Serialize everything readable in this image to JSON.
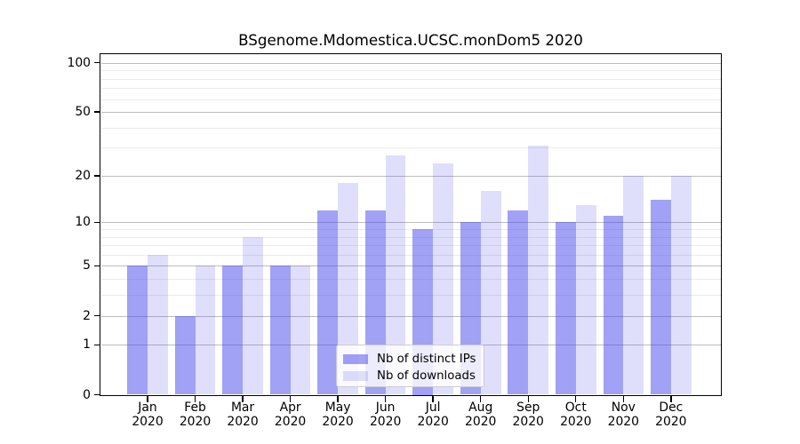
{
  "chart_data": {
    "type": "bar",
    "title": "BSgenome.Mdomestica.UCSC.monDom5 2020",
    "categories": [
      "Jan",
      "Feb",
      "Mar",
      "Apr",
      "May",
      "Jun",
      "Jul",
      "Aug",
      "Sep",
      "Oct",
      "Nov",
      "Dec"
    ],
    "x_tick_year": "2020",
    "series": [
      {
        "name": "Nb of distinct IPs",
        "color": "#4444ee",
        "alpha": 0.5,
        "values": [
          5,
          2,
          5,
          5,
          12,
          12,
          9,
          10,
          12,
          10,
          11,
          14
        ]
      },
      {
        "name": "Nb of downloads",
        "color": "#4444ee",
        "alpha": 0.17,
        "values": [
          6,
          5,
          8,
          5,
          18,
          27,
          24,
          16,
          31,
          13,
          20,
          20
        ]
      }
    ],
    "yscale": "log1p",
    "ylim": [
      0,
      112
    ],
    "yticks_major": [
      0,
      1,
      2,
      5,
      10,
      20,
      50,
      100
    ],
    "yticks_minor": [
      3,
      4,
      6,
      7,
      8,
      9,
      30,
      40,
      60,
      70,
      80,
      90
    ],
    "grid": "horizontal",
    "legend_position": "inside-bottom-center",
    "frame_color": "#000000",
    "major_grid_color": "#bdbdbd",
    "minor_grid_color": "#ebebeb"
  }
}
